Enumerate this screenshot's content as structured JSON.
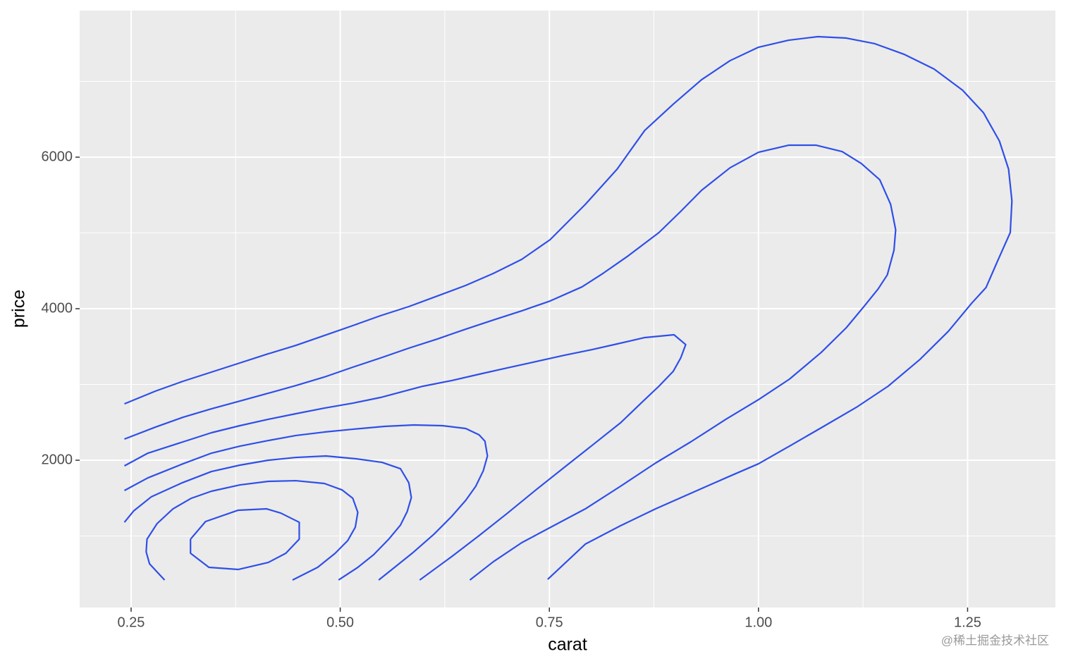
{
  "chart_data": {
    "type": "contour",
    "x_label": "carat",
    "y_label": "price",
    "color": "#2f4fe8",
    "grid": true,
    "xlim": [
      0.1885,
      1.355
    ],
    "ylim": [
      56,
      7935
    ],
    "xticks": [
      0.25,
      {
        "value": 0.5,
        "label": "0.50"
      },
      0.75,
      {
        "value": 1,
        "label": "1.00"
      },
      1.25
    ],
    "yticks": [
      2000,
      4000,
      6000
    ],
    "series": [
      {
        "x": [
          0.242,
          0.279,
          0.312,
          0.346,
          0.38,
          0.414,
          0.447,
          0.481,
          0.515,
          0.548,
          0.582,
          0.616,
          0.65,
          0.683,
          0.717,
          0.751,
          0.793,
          0.831,
          0.864,
          0.898,
          0.932,
          0.966,
          1.0,
          1.036,
          1.071,
          1.105,
          1.139,
          1.174,
          1.21,
          1.244,
          1.269,
          1.288,
          1.299,
          1.303,
          1.301,
          1.286,
          1.272,
          1.255,
          1.227,
          1.193,
          1.155,
          1.117,
          1.075,
          1.037,
          1.0,
          0.961,
          0.919,
          0.877,
          0.835,
          0.793,
          0.748
        ],
        "y": [
          2744,
          2912,
          3042,
          3163,
          3284,
          3405,
          3516,
          3646,
          3777,
          3907,
          4028,
          4167,
          4307,
          4465,
          4651,
          4912,
          5377,
          5842,
          6353,
          6698,
          7023,
          7274,
          7451,
          7544,
          7591,
          7572,
          7498,
          7358,
          7163,
          6884,
          6586,
          6214,
          5842,
          5423,
          5005,
          4633,
          4279,
          4074,
          3702,
          3330,
          2977,
          2698,
          2428,
          2186,
          1953,
          1767,
          1563,
          1358,
          1135,
          893,
          428
        ]
      },
      {
        "x": [
          0.242,
          0.279,
          0.312,
          0.346,
          0.38,
          0.414,
          0.447,
          0.481,
          0.515,
          0.548,
          0.582,
          0.616,
          0.65,
          0.683,
          0.717,
          0.751,
          0.789,
          0.814,
          0.843,
          0.881,
          0.907,
          0.932,
          0.966,
          1.0,
          1.036,
          1.069,
          1.1,
          1.123,
          1.145,
          1.158,
          1.164,
          1.162,
          1.154,
          1.143,
          1.126,
          1.105,
          1.075,
          1.037,
          1.0,
          0.961,
          0.919,
          0.877,
          0.835,
          0.793,
          0.717,
          0.683,
          0.655
        ],
        "y": [
          2279,
          2437,
          2567,
          2679,
          2781,
          2884,
          2986,
          3098,
          3228,
          3349,
          3479,
          3600,
          3730,
          3851,
          3972,
          4102,
          4288,
          4465,
          4688,
          5005,
          5284,
          5563,
          5860,
          6065,
          6158,
          6158,
          6074,
          5916,
          5702,
          5377,
          5042,
          4772,
          4446,
          4260,
          4028,
          3749,
          3423,
          3070,
          2800,
          2540,
          2242,
          1963,
          1656,
          1358,
          912,
          660,
          419
        ]
      },
      {
        "x": [
          0.242,
          0.27,
          0.312,
          0.346,
          0.38,
          0.414,
          0.447,
          0.481,
          0.515,
          0.548,
          0.599,
          0.633,
          0.666,
          0.7,
          0.734,
          0.768,
          0.801,
          0.831,
          0.864,
          0.899,
          0.913,
          0.907,
          0.898,
          0.881,
          0.864,
          0.835,
          0.801,
          0.768,
          0.734,
          0.7,
          0.666,
          0.633,
          0.595
        ],
        "y": [
          1926,
          2093,
          2242,
          2363,
          2456,
          2540,
          2614,
          2688,
          2753,
          2828,
          2977,
          3051,
          3135,
          3219,
          3302,
          3386,
          3460,
          3535,
          3619,
          3656,
          3526,
          3349,
          3172,
          2977,
          2800,
          2493,
          2195,
          1907,
          1609,
          1302,
          1005,
          726,
          419
        ]
      },
      {
        "x": [
          0.242,
          0.27,
          0.312,
          0.346,
          0.38,
          0.414,
          0.447,
          0.481,
          0.515,
          0.553,
          0.588,
          0.622,
          0.65,
          0.666,
          0.673,
          0.676,
          0.671,
          0.662,
          0.65,
          0.633,
          0.612,
          0.586,
          0.565,
          0.546
        ],
        "y": [
          1600,
          1767,
          1953,
          2093,
          2186,
          2260,
          2326,
          2372,
          2409,
          2447,
          2465,
          2456,
          2419,
          2335,
          2251,
          2056,
          1860,
          1656,
          1470,
          1256,
          1023,
          772,
          586,
          419
        ]
      },
      {
        "x": [
          0.242,
          0.253,
          0.274,
          0.311,
          0.346,
          0.38,
          0.414,
          0.447,
          0.483,
          0.519,
          0.55,
          0.572,
          0.582,
          0.585,
          0.58,
          0.572,
          0.558,
          0.54,
          0.521,
          0.498
        ],
        "y": [
          1181,
          1330,
          1516,
          1702,
          1851,
          1935,
          2000,
          2037,
          2056,
          2019,
          1972,
          1888,
          1702,
          1507,
          1321,
          1144,
          958,
          754,
          586,
          419
        ]
      },
      {
        "x": [
          0.29,
          0.272,
          0.268,
          0.269,
          0.281,
          0.3,
          0.322,
          0.346,
          0.38,
          0.414,
          0.447,
          0.481,
          0.502,
          0.515,
          0.521,
          0.518,
          0.509,
          0.494,
          0.473,
          0.443
        ],
        "y": [
          419,
          633,
          791,
          958,
          1163,
          1358,
          1498,
          1591,
          1674,
          1721,
          1730,
          1693,
          1609,
          1498,
          1312,
          1116,
          940,
          772,
          586,
          419
        ]
      },
      {
        "x": [
          0.321,
          0.339,
          0.378,
          0.412,
          0.429,
          0.451,
          0.451,
          0.435,
          0.414,
          0.378,
          0.343,
          0.321,
          0.321
        ],
        "y": [
          958,
          1191,
          1340,
          1358,
          1302,
          1181,
          958,
          772,
          651,
          558,
          586,
          772,
          958
        ]
      }
    ]
  },
  "watermark": "@稀土掘金技术社区"
}
